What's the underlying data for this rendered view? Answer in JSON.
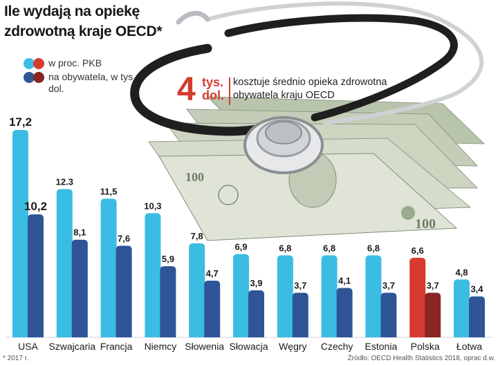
{
  "title": "Ile wydają na opiekę zdrowotną kraje OECD*",
  "legend": {
    "pkb_label": "w proc. PKB",
    "capita_label": "na obywatela, w tys. dol."
  },
  "callout": {
    "value": "4",
    "unit_line1": "tys.",
    "unit_line2": "dol.",
    "text": "kosztuje średnio opieka zdrowotna obywatela kraju OECD"
  },
  "footnote": "* 2017 r.",
  "source": "Źródło: OECD Health Statistics 2018, oprac d.w.",
  "colors": {
    "pkb": "#3bbde3",
    "capita": "#2f5597",
    "pkb_highlight": "#d63b2f",
    "capita_highlight": "#8a2524",
    "label_text": "#1a1a1a"
  },
  "images": {
    "stethoscope_and_dollars": "stethoscope-on-dollar-bills"
  },
  "chart_data": {
    "type": "bar",
    "title": "Ile wydają na opiekę zdrowotną kraje OECD*",
    "categories": [
      "USA",
      "Szwajcaria",
      "Francja",
      "Niemcy",
      "Słowenia",
      "Słowacja",
      "Węgry",
      "Czechy",
      "Estonia",
      "Polska",
      "Łotwa"
    ],
    "series": [
      {
        "name": "w proc. PKB",
        "values": [
          17.2,
          12.3,
          11.5,
          10.3,
          7.8,
          6.9,
          6.8,
          6.8,
          6.8,
          6.6,
          4.8
        ],
        "labels": [
          "17,2",
          "12.3",
          "11,5",
          "10,3",
          "7,8",
          "6,9",
          "6,8",
          "6,8",
          "6,8",
          "6,6",
          "4,8"
        ]
      },
      {
        "name": "na obywatela, w tys. dol.",
        "values": [
          10.2,
          8.1,
          7.6,
          5.9,
          4.7,
          3.9,
          3.7,
          4.1,
          3.7,
          3.7,
          3.4
        ],
        "labels": [
          "10,2",
          "8,1",
          "7,6",
          "5,9",
          "4,7",
          "3,9",
          "3,7",
          "4,1",
          "3,7",
          "3,7",
          "3,4"
        ]
      }
    ],
    "highlight_category": "Polska",
    "xlabel": "",
    "ylabel": "",
    "ylim": [
      0,
      17.2
    ],
    "grid": false,
    "legend_position": "top-left"
  }
}
